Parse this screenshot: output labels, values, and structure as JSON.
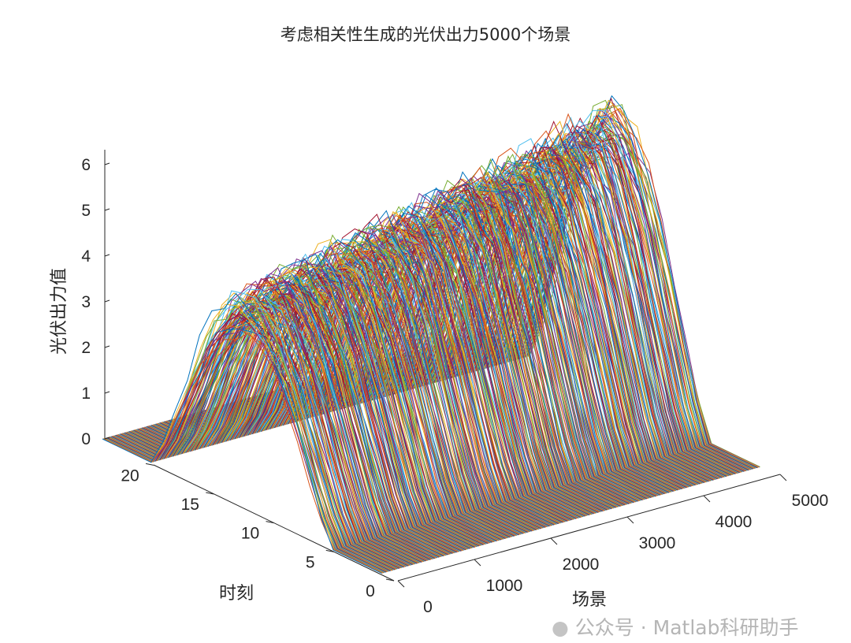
{
  "chart_data": {
    "type": "line3d",
    "title": "考虑相关性生成的光伏出力5000个场景",
    "xlabel": "场景",
    "ylabel": "时刻",
    "zlabel": "光伏出力值",
    "xlim": [
      0,
      5000
    ],
    "ylim": [
      0,
      24
    ],
    "zlim": [
      0,
      6.3
    ],
    "xticks": [
      "0",
      "1000",
      "2000",
      "3000",
      "4000",
      "5000"
    ],
    "yticks": [
      "0",
      "5",
      "10",
      "15",
      "20"
    ],
    "zticks": [
      "0",
      "1",
      "2",
      "3",
      "4",
      "5",
      "6"
    ],
    "scenario_count": 5000,
    "grid": false,
    "series_colors": [
      "#0072BD",
      "#D95319",
      "#EDB120",
      "#7E2F8E",
      "#77AC30",
      "#4DBEEE",
      "#A2142F"
    ]
  },
  "watermark": "公众号 · Matlab科研助手"
}
